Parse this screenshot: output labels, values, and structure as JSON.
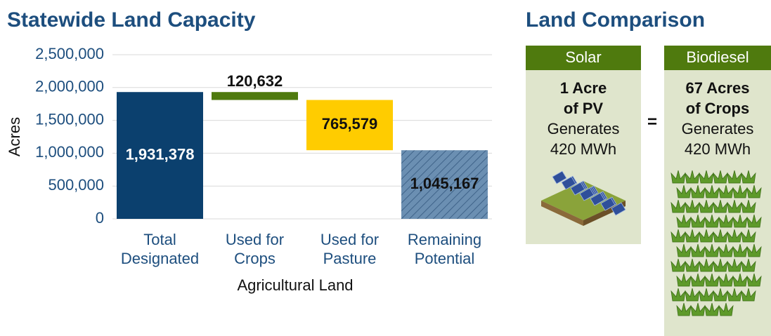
{
  "chart_data": {
    "type": "waterfall",
    "title": "Statewide Land Capacity",
    "categories": [
      "Total Designated",
      "Used for Crops",
      "Used for Pasture",
      "Remaining Potential"
    ],
    "values": [
      1931378,
      120632,
      765579,
      1045167
    ],
    "value_labels": [
      "1,931,378",
      "120,632",
      "765,579",
      "1,045,167"
    ],
    "colors": [
      "#0b406e",
      "#4f7a0e",
      "#ffcc00",
      "#6b8fb2"
    ],
    "hatched": [
      false,
      false,
      false,
      true
    ],
    "ylim": [
      0,
      2500000
    ],
    "yticks": [
      0,
      {
        "value": 500000,
        "label": "500,000"
      },
      {
        "value": 1000000,
        "label": "1,000,000"
      },
      {
        "value": 1500000,
        "label": "1,500,000"
      },
      {
        "value": 2000000,
        "label": "2,000,000"
      },
      {
        "value": 2500000,
        "label": "2,500,000"
      }
    ],
    "grid": true,
    "y_label": "Acres",
    "x_label": "Agricultural Land"
  },
  "comparison": {
    "title": "Land Comparison",
    "equals": "=",
    "cards": [
      {
        "header": "Solar",
        "lines": [
          "1 Acre",
          "of PV",
          "Generates",
          "420 MWh"
        ]
      },
      {
        "header": "Biodiesel",
        "lines": [
          "67 Acres",
          "of Crops",
          "Generates",
          "420 MWh"
        ]
      }
    ]
  }
}
